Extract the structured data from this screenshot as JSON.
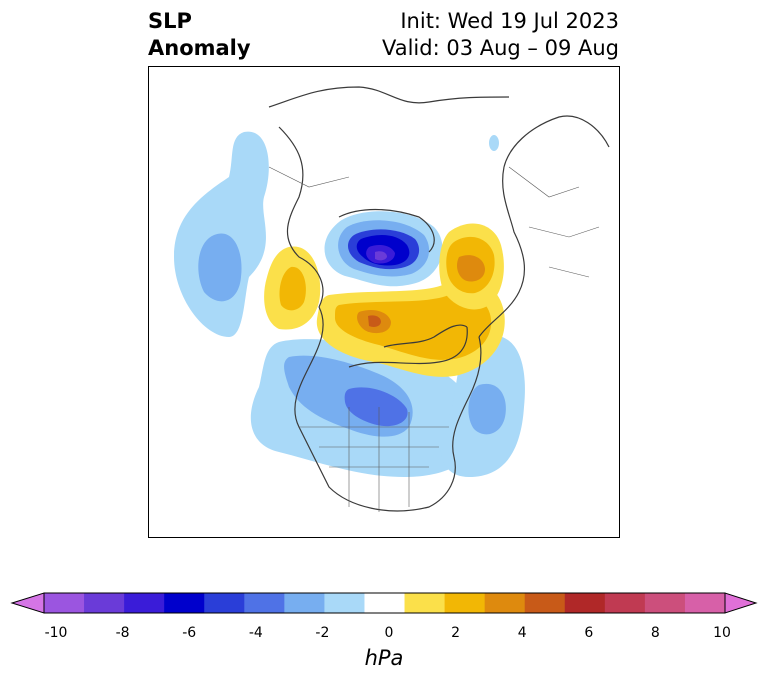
{
  "title": {
    "variable_line1": "SLP",
    "variable_line2": "Anomaly",
    "init": "Init: Wed 19 Jul 2023",
    "valid": "Valid: 03 Aug – 09 Aug"
  },
  "colorbar": {
    "unit": "hPa",
    "ticks": [
      "-10",
      "-8",
      "-6",
      "-4",
      "-2",
      "0",
      "2",
      "4",
      "6",
      "8",
      "10"
    ],
    "colors": [
      "#d575e6",
      "#9b55e0",
      "#6a3bd8",
      "#3a1cd8",
      "#0000cc",
      "#2a3ed8",
      "#4f72e6",
      "#77aef0",
      "#a9d9f8",
      "#ffffff",
      "#fbe04a",
      "#f2b705",
      "#de8a0e",
      "#c85a18",
      "#b02828",
      "#c03a52",
      "#cc4f7c",
      "#d760a8",
      "#e070d8"
    ],
    "extend": "both"
  },
  "map": {
    "projection": "north-polar-stereographic",
    "field": "SLP anomaly",
    "features": [
      {
        "name": "negative anomaly Laptev / Kara Sea",
        "level": -7
      },
      {
        "name": "negative anomaly central-east North America",
        "level": -4
      },
      {
        "name": "negative anomaly North Atlantic",
        "level": -3
      },
      {
        "name": "negative anomaly North Pacific",
        "level": -3
      },
      {
        "name": "positive anomaly Canadian Arctic / Greenland",
        "level": 5
      },
      {
        "name": "positive anomaly Eastern Siberia",
        "level": 4
      },
      {
        "name": "positive anomaly Scandinavia / Barents",
        "level": 3
      }
    ]
  }
}
